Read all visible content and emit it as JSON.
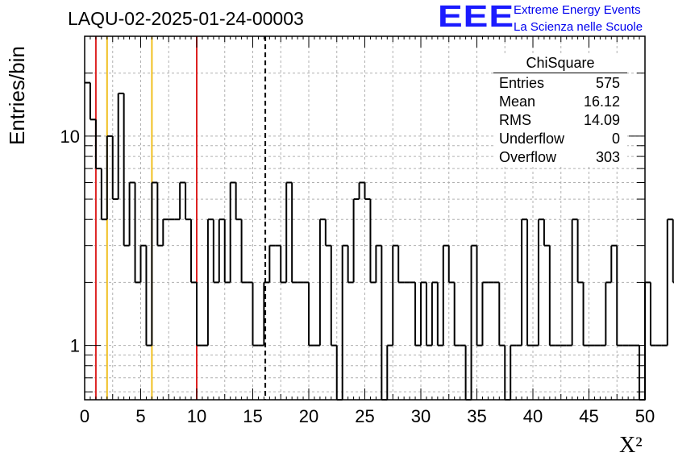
{
  "header": {
    "title": "LAQU-02-2025-01-24-00003",
    "logo_mark": "EEE",
    "logo_line1": "Extreme Energy Events",
    "logo_line2": "La Scienza nelle Scuole"
  },
  "stats": {
    "name": "ChiSquare",
    "rows": [
      {
        "label": "Entries",
        "value": "575"
      },
      {
        "label": "Mean",
        "value": "16.12"
      },
      {
        "label": "RMS",
        "value": "14.09"
      },
      {
        "label": "Underflow",
        "value": "0"
      },
      {
        "label": "Overflow",
        "value": "303"
      }
    ]
  },
  "chart_data": {
    "type": "histogram",
    "title": "LAQU-02-2025-01-24-00003",
    "xlabel": "X²",
    "ylabel": "Entries/bin",
    "xlim": [
      0,
      50
    ],
    "ylim": [
      0.55,
      30
    ],
    "yscale": "log",
    "grid": true,
    "bin_width": 0.5,
    "values": [
      18,
      12,
      7,
      4,
      10,
      5,
      16,
      3,
      6,
      2,
      3,
      1,
      6,
      3,
      4,
      4,
      4,
      6,
      4,
      2,
      1,
      1,
      4,
      2,
      4,
      2,
      6,
      4,
      2,
      2,
      1,
      1,
      2,
      3,
      3,
      2,
      6,
      2,
      2,
      2,
      1,
      1,
      4,
      3,
      1,
      0.5,
      3,
      2,
      5,
      6,
      5,
      2,
      3,
      0.5,
      1,
      3,
      2,
      2,
      2,
      1,
      2,
      1,
      2,
      1,
      3,
      2,
      1,
      1,
      0.5,
      3,
      1,
      2,
      2,
      2,
      1,
      0.5,
      1,
      1,
      4,
      1,
      1,
      4,
      3,
      1,
      1,
      1,
      1,
      4,
      2,
      1,
      1,
      1,
      1,
      2,
      3,
      1,
      1,
      1,
      1,
      0.5,
      2,
      1,
      1,
      1,
      4,
      2,
      1,
      3,
      1,
      1,
      2,
      1,
      1,
      1,
      0,
      0,
      1,
      1,
      1,
      2,
      2,
      1,
      4,
      2,
      1,
      1,
      1,
      1,
      3,
      1,
      1,
      0.5,
      1,
      1,
      2,
      1,
      2,
      1,
      3,
      1,
      1,
      0.5,
      1,
      2,
      1,
      1,
      2,
      1,
      1,
      1,
      0.5,
      2,
      1,
      1,
      1,
      1,
      1,
      0.5,
      1,
      1,
      1,
      0.5,
      1,
      1,
      0.5,
      1,
      2,
      1,
      1,
      1,
      1,
      1,
      1,
      1,
      1,
      1,
      1,
      1,
      1,
      1,
      0.5,
      1,
      1,
      1,
      2,
      1,
      2,
      2,
      1,
      1,
      1,
      1,
      1,
      1,
      0.5,
      1,
      1,
      1,
      1,
      4
    ],
    "x_ticks": [
      0,
      5,
      10,
      15,
      20,
      25,
      30,
      35,
      40,
      45,
      50
    ],
    "y_ticks": [
      1,
      10
    ],
    "vlines": [
      {
        "x": 1,
        "color": "#dd2222",
        "style": "solid"
      },
      {
        "x": 2,
        "color": "#f0c020",
        "style": "solid"
      },
      {
        "x": 6,
        "color": "#f0c020",
        "style": "solid"
      },
      {
        "x": 10,
        "color": "#dd2222",
        "style": "solid"
      },
      {
        "x": 16.12,
        "color": "#000000",
        "style": "dashed"
      }
    ]
  }
}
